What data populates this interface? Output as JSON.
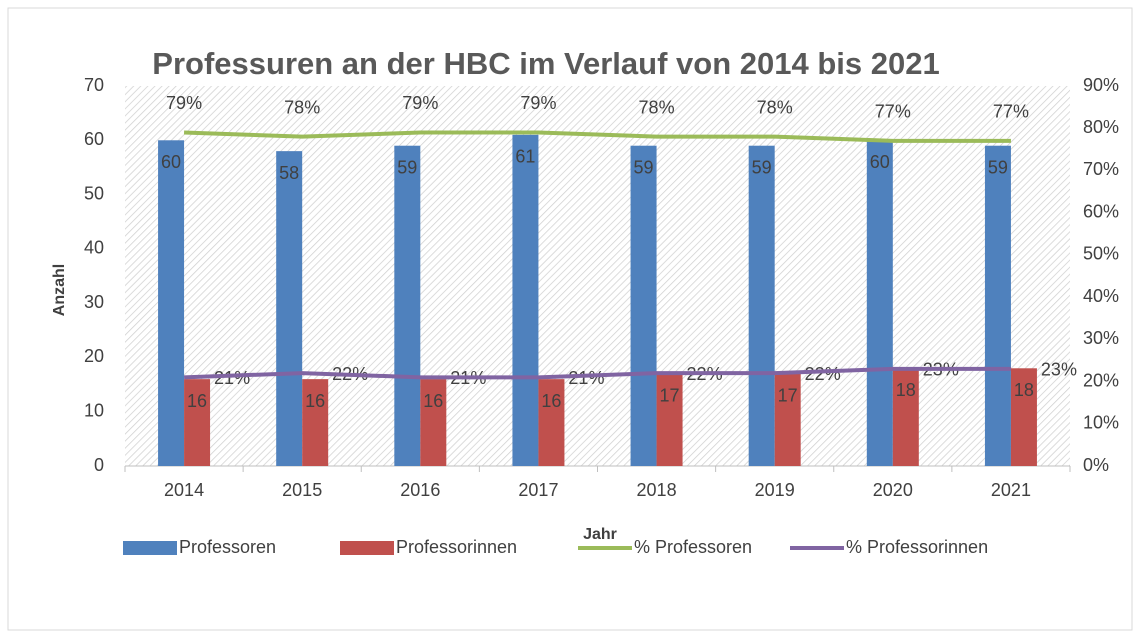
{
  "chart_data": {
    "type": "bar",
    "title": "Professuren an der HBC im Verlauf von 2014 bis 2021",
    "xlabel": "Jahr",
    "ylabel": "Anzahl",
    "categories": [
      "2014",
      "2015",
      "2016",
      "2017",
      "2018",
      "2019",
      "2020",
      "2021"
    ],
    "ylim": [
      0,
      70
    ],
    "yticks": [
      0,
      10,
      20,
      30,
      40,
      50,
      60,
      70
    ],
    "y2lim": [
      0,
      90
    ],
    "y2ticks": [
      {
        "value": 0,
        "label": "0%"
      },
      {
        "value": 10,
        "label": "10%"
      },
      {
        "value": 20,
        "label": "20%"
      },
      {
        "value": 30,
        "label": "30%"
      },
      {
        "value": 40,
        "label": "40%"
      },
      {
        "value": 50,
        "label": "50%"
      },
      {
        "value": 60,
        "label": "60%"
      },
      {
        "value": 70,
        "label": "70%"
      },
      {
        "value": 80,
        "label": "80%"
      },
      {
        "value": 90,
        "label": "90%"
      }
    ],
    "legend": "bottom",
    "series": [
      {
        "name": "Professoren",
        "type": "bar",
        "color": "#4f81bd",
        "values": [
          60,
          58,
          59,
          61,
          59,
          59,
          60,
          59
        ]
      },
      {
        "name": "Professorinnen",
        "type": "bar",
        "color": "#c0504d",
        "values": [
          16,
          16,
          16,
          16,
          17,
          17,
          18,
          18
        ]
      },
      {
        "name": "% Professoren",
        "type": "line",
        "axis": "y2",
        "color": "#9bbb59",
        "values": [
          79,
          78,
          79,
          79,
          78,
          78,
          77,
          77
        ],
        "value_labels": [
          "79%",
          "78%",
          "79%",
          "79%",
          "78%",
          "78%",
          "77%",
          "77%"
        ]
      },
      {
        "name": "% Professorinnen",
        "type": "line",
        "axis": "y2",
        "color": "#8064a2",
        "values": [
          21,
          22,
          21,
          21,
          22,
          22,
          23,
          23
        ],
        "value_labels": [
          "21%",
          "22%",
          "21%",
          "21%",
          "22%",
          "22%",
          "23%",
          "23%"
        ]
      }
    ]
  }
}
